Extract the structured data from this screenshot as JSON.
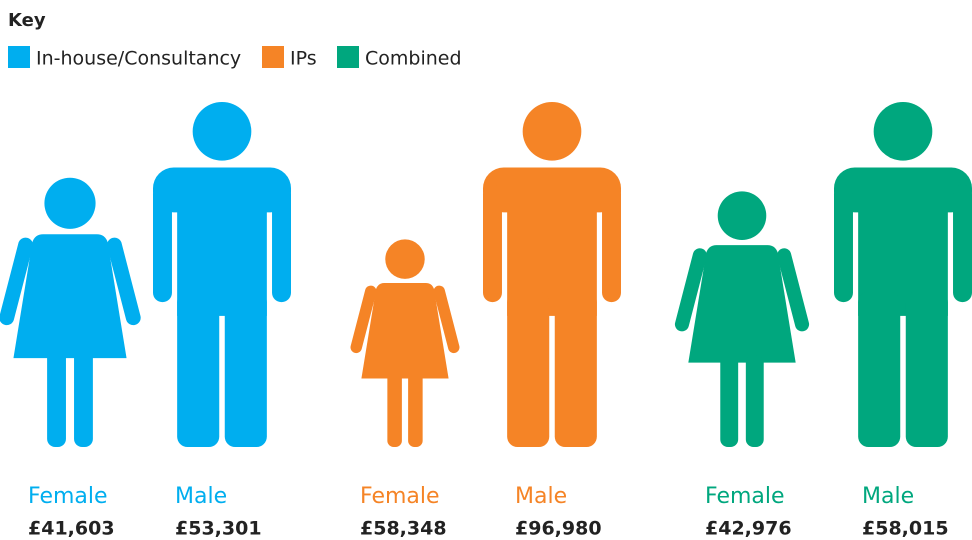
{
  "chart_data": {
    "type": "pictogram",
    "legend_title": "Key",
    "categories": [
      "Female",
      "Male"
    ],
    "series": [
      {
        "name": "In-house/Consultancy",
        "color": "#00aeef",
        "values": [
          41603,
          53301
        ],
        "value_labels": [
          "£41,603",
          "£53,301"
        ]
      },
      {
        "name": "IPs",
        "color": "#f58426",
        "values": [
          58348,
          96980
        ],
        "value_labels": [
          "£58,348",
          "£96,980"
        ]
      },
      {
        "name": "Combined",
        "color": "#00a77e",
        "values": [
          42976,
          58015
        ],
        "value_labels": [
          "£42,976",
          "£58,015"
        ]
      }
    ]
  }
}
